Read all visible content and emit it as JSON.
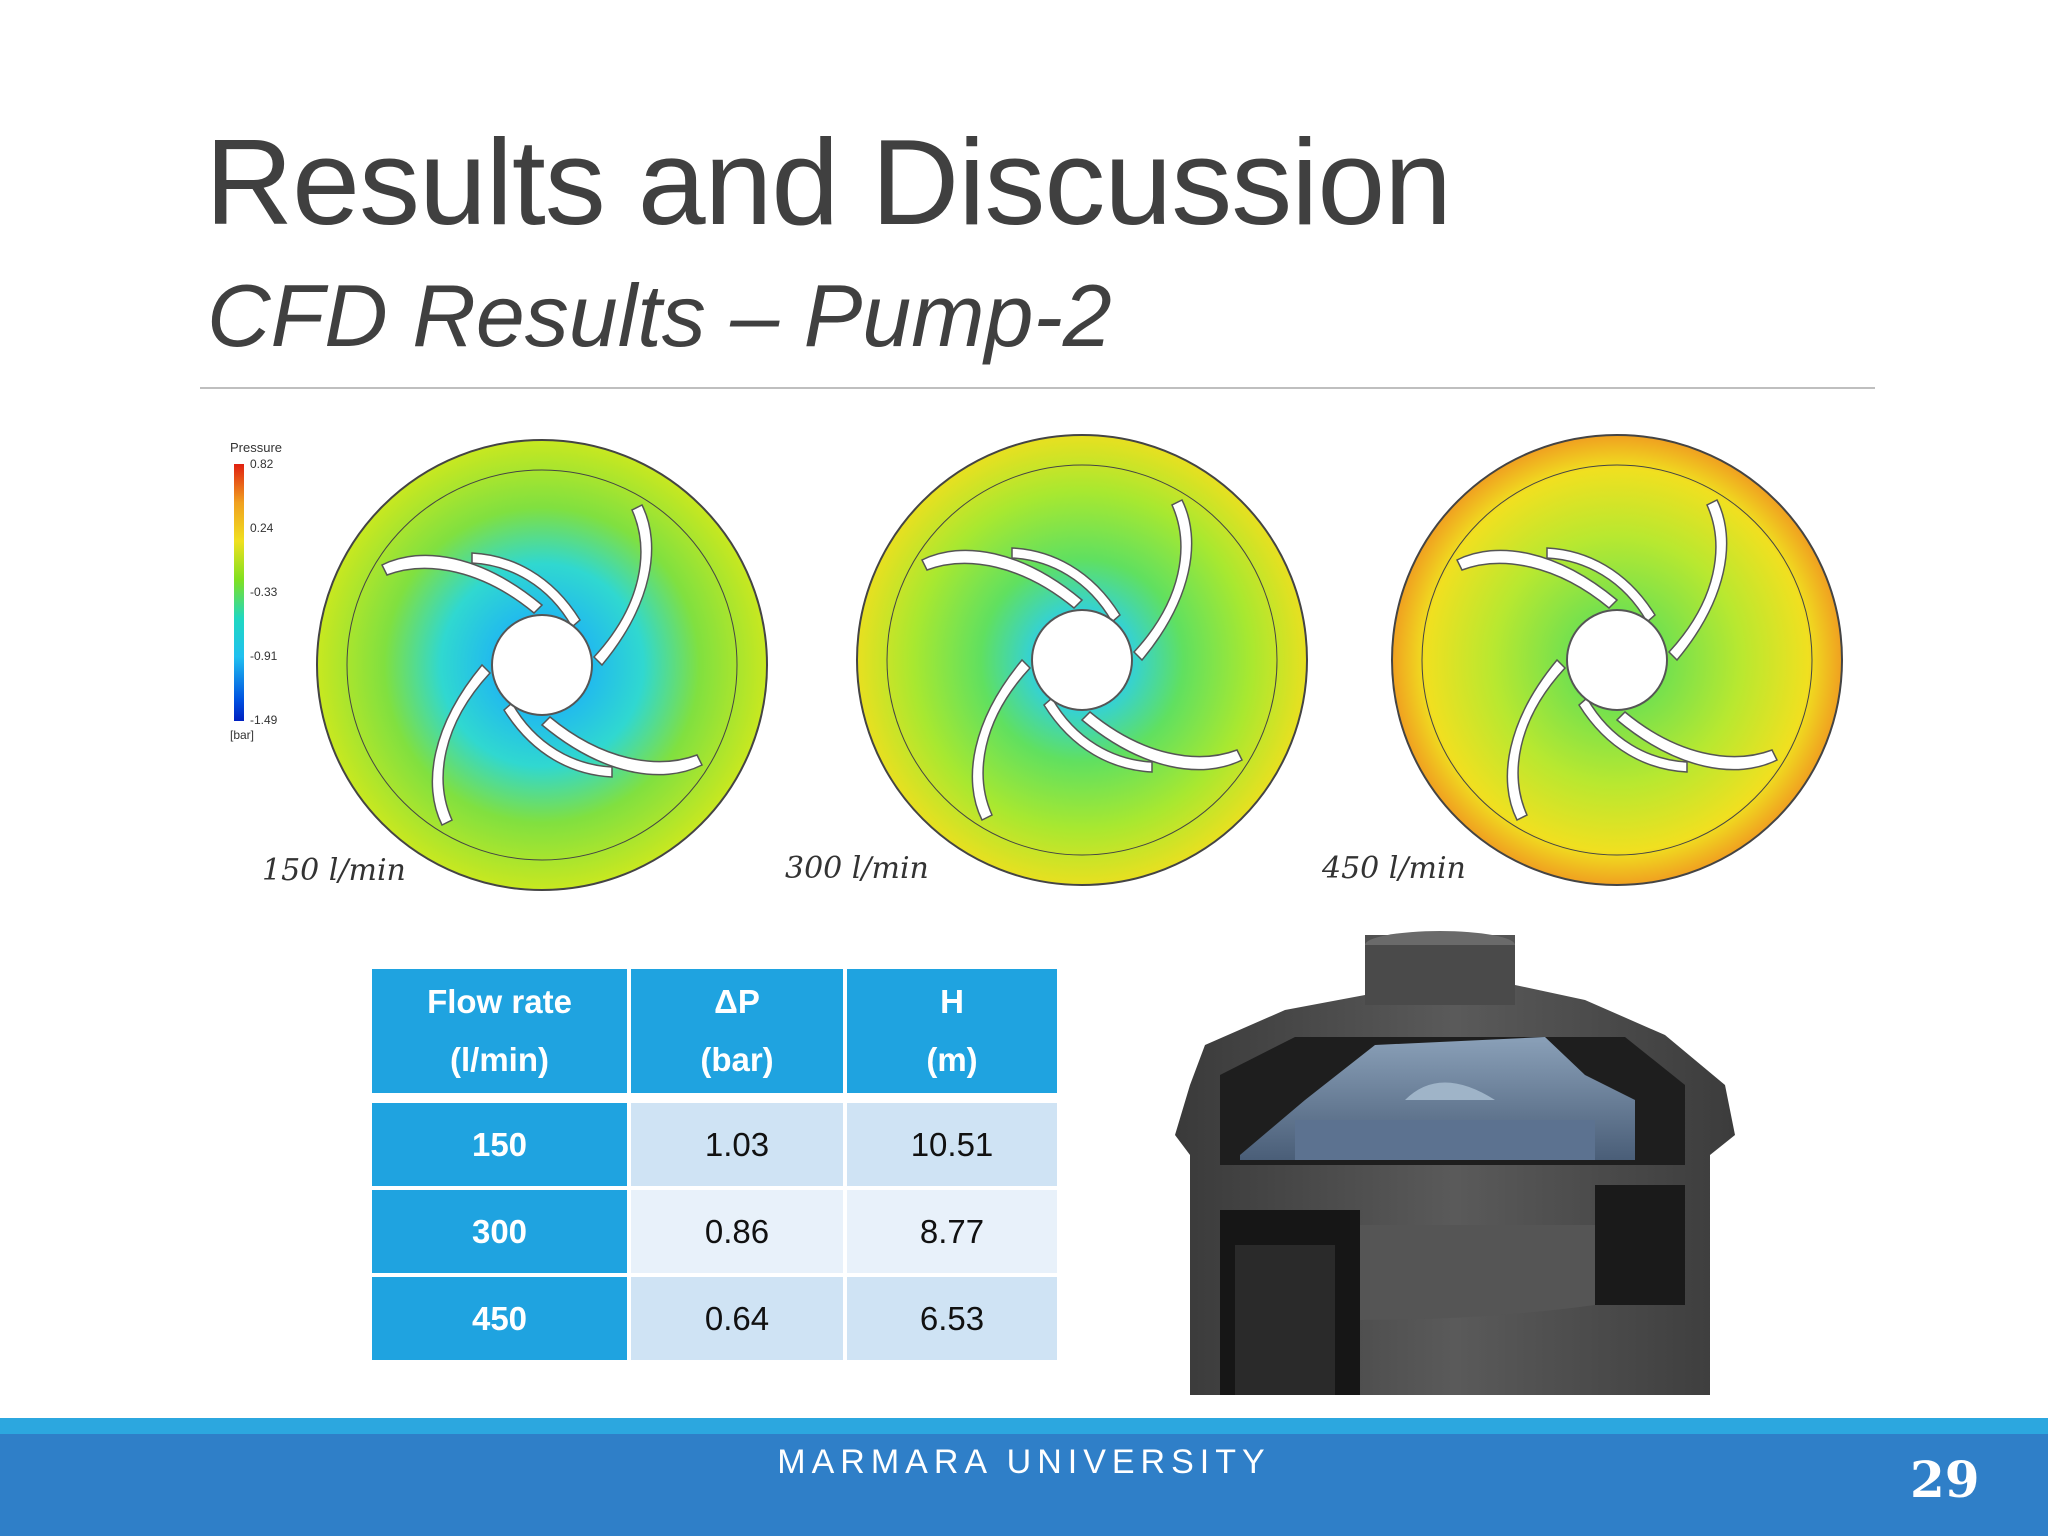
{
  "header": {
    "title": "Results and Discussion",
    "subtitle": "CFD Results – Pump-2"
  },
  "figure": {
    "legend_title": "Pressure",
    "legend_unit": "[bar]",
    "legend_ticks": [
      "0.82",
      "0.24",
      "-0.33",
      "-0.91",
      "-1.49"
    ],
    "panels": [
      {
        "label": "150 l/min"
      },
      {
        "label": "300 l/min"
      },
      {
        "label": "450 l/min"
      }
    ]
  },
  "table": {
    "headers": [
      {
        "line1": "Flow rate",
        "line2": "(l/min)"
      },
      {
        "line1": "ΔP",
        "line2": "(bar)"
      },
      {
        "line1": "H",
        "line2": "(m)"
      }
    ],
    "rows": [
      {
        "flow": "150",
        "dp": "1.03",
        "h": "10.51"
      },
      {
        "flow": "300",
        "dp": "0.86",
        "h": "8.77"
      },
      {
        "flow": "450",
        "dp": "0.64",
        "h": "6.53"
      }
    ]
  },
  "footer": {
    "org": "MARMARA UNIVERSITY",
    "page": "29"
  },
  "colors": {
    "accent_blue": "#1fa3e0",
    "footer_blue": "#2f7fc8",
    "text_gray": "#404040"
  }
}
